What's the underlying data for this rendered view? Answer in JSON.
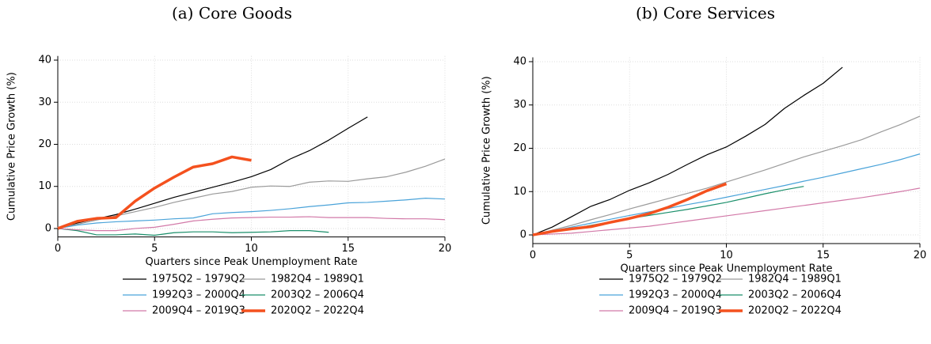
{
  "chart_data": [
    {
      "type": "line",
      "title": "(a) Core Goods",
      "xlabel": "Quarters since Peak Unemployment Rate",
      "ylabel": "Cumulative Price Growth (%)",
      "x": [
        0,
        1,
        2,
        3,
        4,
        5,
        6,
        7,
        8,
        9,
        10,
        11,
        12,
        13,
        14,
        15,
        16,
        17,
        18,
        19,
        20
      ],
      "xlim": [
        0,
        20
      ],
      "xticks": [
        0,
        5,
        10,
        15,
        20
      ],
      "ylim": [
        -2,
        41
      ],
      "yticks": [
        0,
        10,
        20,
        30,
        40
      ],
      "grid": true,
      "series": [
        {
          "name": "1975Q2 – 1979Q2",
          "color": "#000000",
          "values": [
            0,
            1.3,
            2.3,
            3.3,
            4.6,
            6.0,
            7.4,
            8.6,
            9.8,
            11.0,
            12.3,
            14.0,
            16.5,
            18.5,
            21.0,
            23.8,
            26.5,
            null,
            null,
            null,
            null
          ]
        },
        {
          "name": "1982Q4 – 1989Q1",
          "color": "#9a9a9a",
          "values": [
            0,
            1,
            2,
            3,
            4,
            5,
            6.2,
            7.2,
            8.2,
            8.8,
            9.8,
            10.1,
            10.0,
            11.0,
            11.3,
            11.2,
            11.8,
            12.3,
            13.4,
            14.8,
            16.5
          ]
        },
        {
          "name": "1992Q3 – 2000Q4",
          "color": "#4aa3d9",
          "values": [
            0,
            0.8,
            1.3,
            1.6,
            1.8,
            2.0,
            2.3,
            2.5,
            3.5,
            3.8,
            4.0,
            4.3,
            4.7,
            5.2,
            5.6,
            6.1,
            6.2,
            6.5,
            6.8,
            7.2,
            7.0
          ]
        },
        {
          "name": "2003Q2 – 2006Q4",
          "color": "#1a8f6a",
          "values": [
            0,
            -0.5,
            -1.5,
            -1.5,
            -1.3,
            -1.6,
            -1.0,
            -0.8,
            -0.8,
            -1.0,
            -0.9,
            -0.8,
            -0.5,
            -0.5,
            -0.9,
            null,
            null,
            null,
            null,
            null,
            null
          ]
        },
        {
          "name": "2009Q4 – 2019Q3",
          "color": "#d279a8",
          "values": [
            0,
            -0.3,
            -0.5,
            -0.5,
            0,
            0.3,
            1,
            1.8,
            2.2,
            2.5,
            2.6,
            2.7,
            2.7,
            2.8,
            2.6,
            2.6,
            2.6,
            2.4,
            2.3,
            2.3,
            2.1
          ]
        },
        {
          "name": "2020Q2 – 2022Q4",
          "color": "#f4511e",
          "width": 3.5,
          "values": [
            0,
            1.7,
            2.4,
            2.6,
            6.5,
            9.6,
            12.2,
            14.6,
            15.4,
            17.0,
            16.2,
            null,
            null,
            null,
            null,
            null,
            null,
            null,
            null,
            null,
            null
          ]
        }
      ]
    },
    {
      "type": "line",
      "title": "(b) Core Services",
      "xlabel": "Quarters since Peak Unemployment Rate",
      "ylabel": "Cumulative Price Growth (%)",
      "x": [
        0,
        1,
        2,
        3,
        4,
        5,
        6,
        7,
        8,
        9,
        10,
        11,
        12,
        13,
        14,
        15,
        16,
        17,
        18,
        19,
        20
      ],
      "xlim": [
        0,
        20
      ],
      "xticks": [
        0,
        5,
        10,
        15,
        20
      ],
      "ylim": [
        -2,
        41
      ],
      "yticks": [
        0,
        10,
        20,
        30,
        40
      ],
      "grid": true,
      "series": [
        {
          "name": "1975Q2 – 1979Q2",
          "color": "#000000",
          "values": [
            0,
            1.8,
            4.2,
            6.6,
            8.2,
            10.3,
            12,
            14,
            16.3,
            18.5,
            20.3,
            22.8,
            25.5,
            29.2,
            32.2,
            35,
            38.7,
            null,
            null,
            null,
            null
          ]
        },
        {
          "name": "1982Q4 – 1989Q1",
          "color": "#9a9a9a",
          "values": [
            0,
            1.1,
            2.2,
            3.5,
            4.7,
            6,
            7.2,
            8.4,
            9.6,
            10.8,
            12.2,
            13.6,
            15,
            16.5,
            18,
            19.3,
            20.6,
            22,
            23.8,
            25.5,
            27.4
          ]
        },
        {
          "name": "1992Q3 – 2000Q4",
          "color": "#4aa3d9",
          "values": [
            0,
            0.9,
            1.8,
            2.7,
            3.6,
            4.5,
            5.3,
            6.1,
            7,
            7.8,
            8.7,
            9.6,
            10.5,
            11.4,
            12.4,
            13.3,
            14.3,
            15.3,
            16.3,
            17.4,
            18.7
          ]
        },
        {
          "name": "2003Q2 – 2006Q4",
          "color": "#1a8f6a",
          "values": [
            0,
            0.7,
            1.4,
            2.2,
            3.0,
            3.8,
            4.5,
            5.2,
            5.9,
            6.7,
            7.5,
            8.5,
            9.5,
            10.4,
            11.2,
            null,
            null,
            null,
            null,
            null,
            null
          ]
        },
        {
          "name": "2009Q4 – 2019Q3",
          "color": "#d279a8",
          "values": [
            0,
            0.2,
            0.4,
            0.8,
            1.2,
            1.6,
            2.0,
            2.6,
            3.2,
            3.8,
            4.4,
            5.0,
            5.6,
            6.2,
            6.8,
            7.4,
            8.0,
            8.6,
            9.3,
            10.0,
            10.8
          ]
        },
        {
          "name": "2020Q2 – 2022Q4",
          "color": "#f4511e",
          "width": 3.5,
          "values": [
            0,
            0.8,
            1.4,
            1.9,
            2.9,
            3.8,
            4.9,
            6.4,
            8.2,
            10.2,
            11.8,
            null,
            null,
            null,
            null,
            null,
            null,
            null,
            null,
            null,
            null
          ]
        }
      ]
    }
  ]
}
